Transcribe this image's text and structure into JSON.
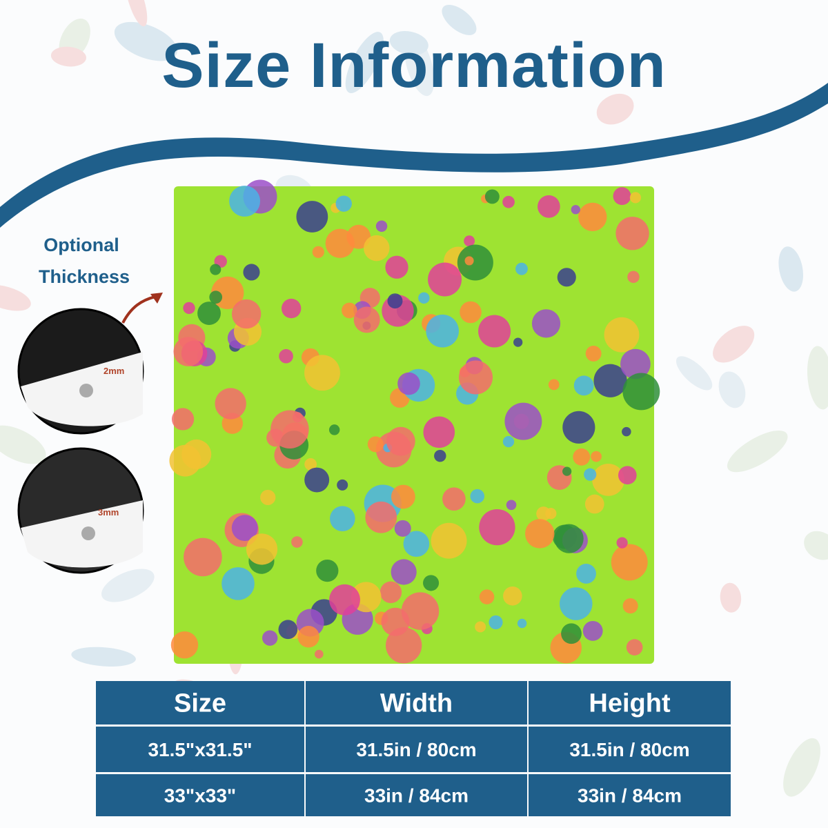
{
  "header": {
    "title": "Size Information"
  },
  "thickness": {
    "title_lines": [
      "Optional",
      "Thickness"
    ],
    "options": [
      "2mm",
      "3mm"
    ]
  },
  "table": {
    "columns": [
      "Size",
      "Width",
      "Height"
    ],
    "rows": [
      [
        "31.5\"x31.5\"",
        "31.5in / 80cm",
        "31.5in / 80cm"
      ],
      [
        "33\"x33\"",
        "33in / 84cm",
        "33in / 84cm"
      ]
    ]
  }
}
